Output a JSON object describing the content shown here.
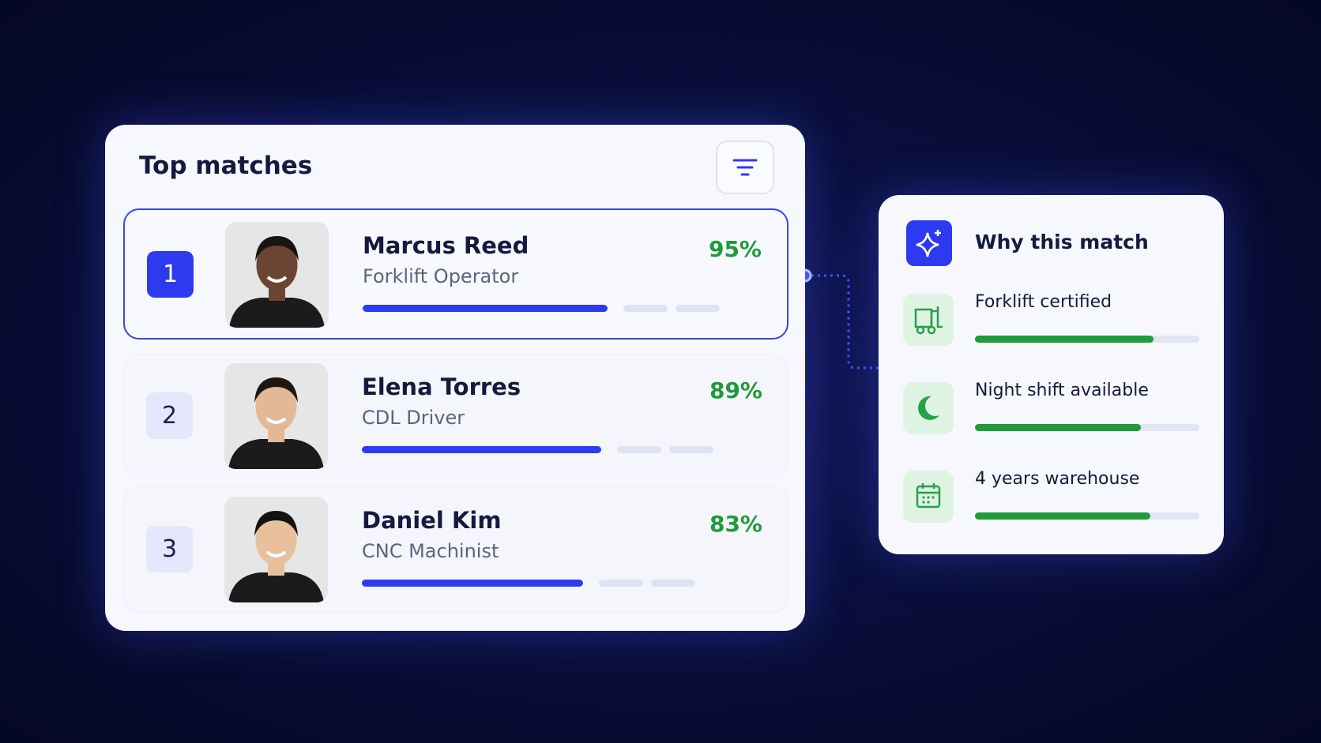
{
  "header": {
    "title": "Top matches"
  },
  "candidates": [
    {
      "rank": "1",
      "name": "Marcus Reed",
      "role": "Forklift Operator",
      "match": "95%"
    },
    {
      "rank": "2",
      "name": "Elena Torres",
      "role": "CDL Driver",
      "match": "89%"
    },
    {
      "rank": "3",
      "name": "Daniel Kim",
      "role": "CNC Machinist",
      "match": "83%"
    }
  ],
  "panel": {
    "title": "Why this match",
    "reasons": [
      {
        "label": "Forklift certified"
      },
      {
        "label": "Night shift available"
      },
      {
        "label": "4 years warehouse"
      }
    ]
  }
}
